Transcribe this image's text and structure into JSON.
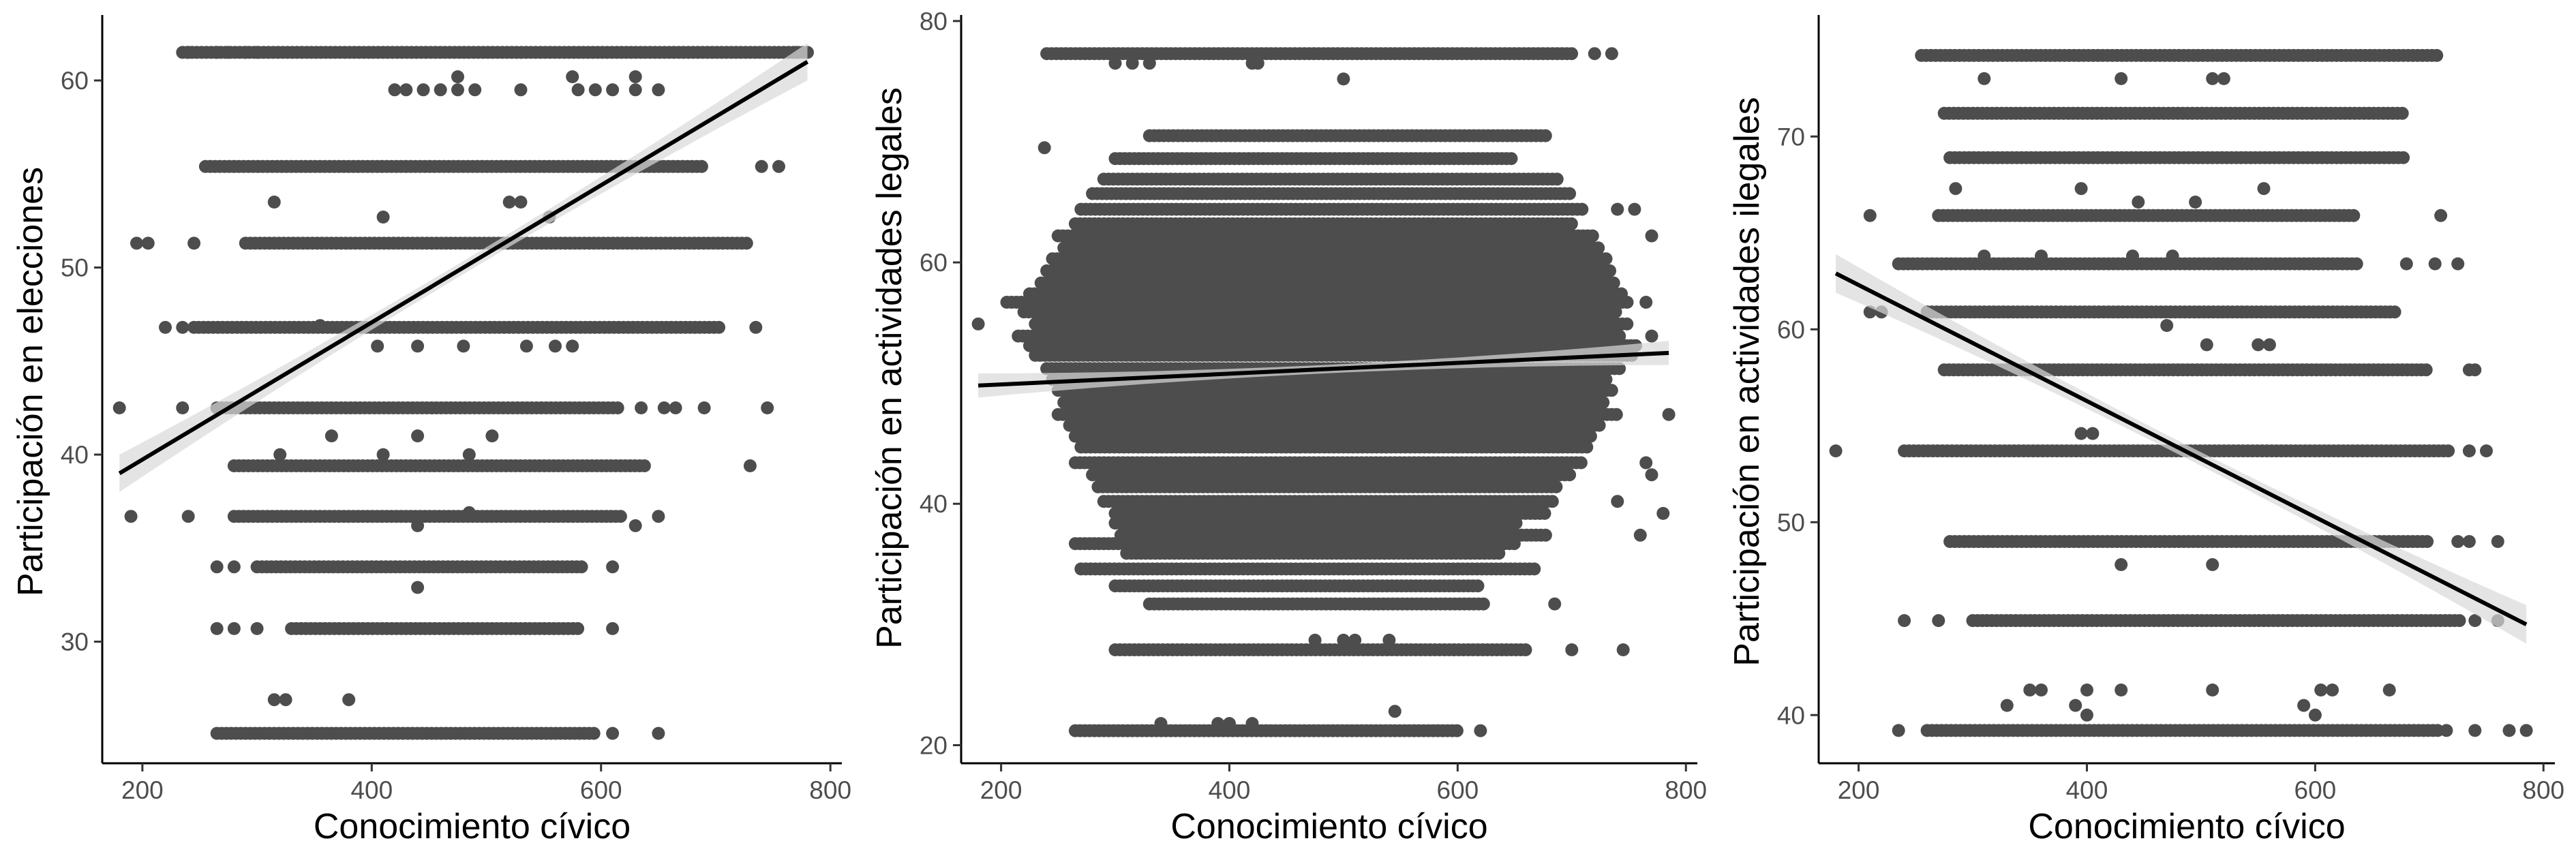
{
  "chart_data": [
    {
      "type": "scatter",
      "xlabel": "Conocimiento cívico",
      "ylabel": "Participación en elecciones",
      "xlim": [
        165,
        810
      ],
      "ylim": [
        23.5,
        63.5
      ],
      "xticks": [
        200,
        400,
        600,
        800
      ],
      "yticks": [
        30,
        40,
        50,
        60
      ],
      "grid": false,
      "point_color": "#4d4d4d",
      "line_color": "#000000",
      "band_color": "#d9d9d9",
      "trend": {
        "x": [
          180,
          780
        ],
        "y": [
          39.0,
          61.0
        ]
      },
      "band_halfwidth": {
        "ends": 1.0,
        "middle": 0.35
      },
      "rows": [
        {
          "y": 61.5,
          "x": [
            235,
            780
          ],
          "extra": [
            240,
            265,
            275,
            290,
            300,
            770,
            780
          ]
        },
        {
          "y": 59.5,
          "x": [],
          "extra": [
            420,
            430,
            445,
            460,
            475,
            490,
            530,
            580,
            595,
            610,
            630,
            650
          ]
        },
        {
          "y": 60.2,
          "x": [],
          "extra": [
            475,
            575,
            630
          ]
        },
        {
          "y": 55.4,
          "x": [
            255,
            690
          ],
          "extra": [
            740,
            755
          ]
        },
        {
          "y": 53.5,
          "x": [],
          "extra": [
            315,
            520,
            530
          ]
        },
        {
          "y": 52.7,
          "x": [],
          "extra": [
            410,
            555
          ]
        },
        {
          "y": 51.3,
          "x": [
            290,
            730
          ],
          "extra": [
            195,
            205,
            245
          ]
        },
        {
          "y": 46.8,
          "x": [
            245,
            705
          ],
          "extra": [
            220,
            235,
            735
          ]
        },
        {
          "y": 46.9,
          "x": [],
          "extra": [
            355
          ]
        },
        {
          "y": 45.8,
          "x": [],
          "extra": [
            405,
            440,
            480,
            535,
            560,
            575
          ]
        },
        {
          "y": 42.5,
          "x": [
            265,
            615
          ],
          "extra": [
            180,
            235,
            635,
            655,
            665,
            690,
            745
          ]
        },
        {
          "y": 41.0,
          "x": [],
          "extra": [
            365,
            440,
            505
          ]
        },
        {
          "y": 40.0,
          "x": [],
          "extra": [
            320,
            410,
            485
          ]
        },
        {
          "y": 39.4,
          "x": [
            280,
            640
          ],
          "extra": [
            730
          ]
        },
        {
          "y": 36.7,
          "x": [
            280,
            620
          ],
          "extra": [
            190,
            240,
            650
          ]
        },
        {
          "y": 36.2,
          "x": [],
          "extra": [
            440,
            630
          ]
        },
        {
          "y": 36.9,
          "x": [],
          "extra": [
            485
          ]
        },
        {
          "y": 34.0,
          "x": [
            300,
            585
          ],
          "extra": [
            265,
            280,
            610
          ]
        },
        {
          "y": 32.9,
          "x": [],
          "extra": [
            440
          ]
        },
        {
          "y": 30.7,
          "x": [
            330,
            580
          ],
          "extra": [
            265,
            280,
            300,
            610
          ]
        },
        {
          "y": 26.9,
          "x": [],
          "extra": [
            315,
            325,
            380
          ]
        },
        {
          "y": 25.1,
          "x": [
            265,
            595
          ],
          "extra": [
            610,
            650
          ]
        }
      ]
    },
    {
      "type": "scatter",
      "xlabel": "Conocimiento cívico",
      "ylabel": "Participación en actividades legales",
      "xlim": [
        165,
        810
      ],
      "ylim": [
        18.5,
        80.5
      ],
      "xticks": [
        200,
        400,
        600,
        800
      ],
      "yticks": [
        20,
        40,
        60,
        80
      ],
      "grid": false,
      "point_color": "#4d4d4d",
      "line_color": "#000000",
      "band_color": "#d9d9d9",
      "trend": {
        "x": [
          180,
          785
        ],
        "y": [
          49.8,
          52.5
        ]
      },
      "band_halfwidth": {
        "ends": 1.0,
        "middle": 0.35
      },
      "rows": [
        {
          "y": 77.3,
          "x": [
            240,
            700
          ],
          "extra": [
            720,
            735
          ]
        },
        {
          "y": 76.5,
          "x": [],
          "extra": [
            300,
            315,
            330,
            420,
            425
          ]
        },
        {
          "y": 75.2,
          "x": [],
          "extra": [
            500
          ]
        },
        {
          "y": 70.5,
          "x": [
            330,
            680
          ]
        },
        {
          "y": 69.5,
          "x": [],
          "extra": [
            238
          ]
        },
        {
          "y": 68.6,
          "x": [
            300,
            650
          ]
        },
        {
          "y": 66.9,
          "x": [
            290,
            690
          ]
        },
        {
          "y": 65.7,
          "x": [
            280,
            700
          ]
        },
        {
          "y": 64.4,
          "x": [
            270,
            710
          ],
          "extra": [
            740,
            755
          ]
        },
        {
          "y": 63.2,
          "x": [
            265,
            700
          ]
        },
        {
          "y": 62.2,
          "x": [
            250,
            720
          ],
          "extra": [
            770
          ]
        },
        {
          "y": 61.2,
          "x": [
            255,
            725
          ]
        },
        {
          "y": 60.3,
          "x": [
            245,
            730
          ]
        },
        {
          "y": 59.3,
          "x": [
            240,
            735
          ]
        },
        {
          "y": 58.3,
          "x": [
            235,
            740
          ]
        },
        {
          "y": 57.4,
          "x": [
            225,
            745
          ]
        },
        {
          "y": 56.7,
          "x": [
            205,
            750
          ],
          "extra": [
            765
          ]
        },
        {
          "y": 55.9,
          "x": [
            220,
            740
          ]
        },
        {
          "y": 54.9,
          "x": [
            230,
            750
          ],
          "extra": [
            180
          ]
        },
        {
          "y": 53.9,
          "x": [
            215,
            745
          ],
          "extra": [
            770
          ]
        },
        {
          "y": 53.1,
          "x": [
            225,
            760
          ]
        },
        {
          "y": 52.3,
          "x": [
            230,
            755
          ]
        },
        {
          "y": 51.2,
          "x": [
            240,
            745
          ]
        },
        {
          "y": 50.3,
          "x": [
            245,
            730
          ]
        },
        {
          "y": 49.4,
          "x": [
            250,
            735
          ]
        },
        {
          "y": 48.4,
          "x": [
            255,
            730
          ]
        },
        {
          "y": 47.4,
          "x": [
            250,
            740
          ],
          "extra": [
            785
          ]
        },
        {
          "y": 46.5,
          "x": [
            260,
            725
          ]
        },
        {
          "y": 45.6,
          "x": [
            265,
            720
          ]
        },
        {
          "y": 44.7,
          "x": [
            270,
            715
          ]
        },
        {
          "y": 43.4,
          "x": [
            265,
            710
          ],
          "extra": [
            765
          ]
        },
        {
          "y": 42.4,
          "x": [
            280,
            700
          ],
          "extra": [
            770
          ]
        },
        {
          "y": 41.4,
          "x": [
            285,
            690
          ]
        },
        {
          "y": 40.2,
          "x": [
            290,
            685
          ],
          "extra": [
            740
          ]
        },
        {
          "y": 39.2,
          "x": [
            300,
            680
          ],
          "extra": [
            780
          ]
        },
        {
          "y": 38.4,
          "x": [
            300,
            655
          ]
        },
        {
          "y": 37.4,
          "x": [
            305,
            680
          ],
          "extra": [
            760
          ]
        },
        {
          "y": 36.7,
          "x": [
            265,
            650
          ]
        },
        {
          "y": 35.9,
          "x": [
            310,
            640
          ]
        },
        {
          "y": 34.6,
          "x": [
            270,
            670
          ]
        },
        {
          "y": 33.2,
          "x": [
            300,
            620
          ]
        },
        {
          "y": 31.7,
          "x": [
            330,
            625
          ],
          "extra": [
            685
          ]
        },
        {
          "y": 28.7,
          "x": [],
          "extra": [
            475,
            500,
            510,
            540
          ]
        },
        {
          "y": 27.9,
          "x": [
            300,
            660
          ],
          "extra": [
            700,
            745
          ]
        },
        {
          "y": 22.8,
          "x": [],
          "extra": [
            545
          ]
        },
        {
          "y": 21.8,
          "x": [],
          "extra": [
            340,
            390,
            400,
            420
          ]
        },
        {
          "y": 21.2,
          "x": [
            265,
            600
          ],
          "extra": [
            620
          ]
        }
      ]
    },
    {
      "type": "scatter",
      "xlabel": "Conocimiento cívico",
      "ylabel": "Participación en actividades ilegales",
      "xlim": [
        165,
        810
      ],
      "ylim": [
        37.5,
        76.3
      ],
      "xticks": [
        200,
        400,
        600,
        800
      ],
      "yticks": [
        40,
        50,
        60,
        70
      ],
      "grid": false,
      "point_color": "#4d4d4d",
      "line_color": "#000000",
      "band_color": "#d9d9d9",
      "trend": {
        "x": [
          180,
          785
        ],
        "y": [
          62.9,
          44.7
        ]
      },
      "band_halfwidth": {
        "ends": 1.0,
        "middle": 0.35
      },
      "rows": [
        {
          "y": 74.2,
          "x": [
            255,
            710
          ]
        },
        {
          "y": 73.0,
          "x": [],
          "extra": [
            310,
            430,
            510,
            520
          ]
        },
        {
          "y": 71.2,
          "x": [
            275,
            680
          ]
        },
        {
          "y": 68.9,
          "x": [
            280,
            680
          ]
        },
        {
          "y": 67.3,
          "x": [],
          "extra": [
            285,
            395,
            555
          ]
        },
        {
          "y": 66.6,
          "x": [],
          "extra": [
            445,
            495
          ]
        },
        {
          "y": 65.9,
          "x": [
            270,
            635
          ],
          "extra": [
            210,
            710
          ]
        },
        {
          "y": 63.8,
          "x": [],
          "extra": [
            310,
            360,
            440,
            475
          ]
        },
        {
          "y": 63.4,
          "x": [
            235,
            640
          ],
          "extra": [
            680,
            705,
            725
          ]
        },
        {
          "y": 60.9,
          "x": [
            260,
            670
          ],
          "extra": [
            210,
            220
          ]
        },
        {
          "y": 60.2,
          "x": [],
          "extra": [
            470
          ]
        },
        {
          "y": 59.2,
          "x": [],
          "extra": [
            505,
            550,
            560
          ]
        },
        {
          "y": 57.9,
          "x": [
            275,
            700
          ],
          "extra": [
            735,
            740
          ]
        },
        {
          "y": 54.6,
          "x": [],
          "extra": [
            395,
            405
          ]
        },
        {
          "y": 53.7,
          "x": [
            240,
            720
          ],
          "extra": [
            180,
            735,
            750
          ]
        },
        {
          "y": 49.0,
          "x": [
            280,
            700
          ],
          "extra": [
            725,
            735,
            760
          ]
        },
        {
          "y": 47.8,
          "x": [],
          "extra": [
            430,
            510
          ]
        },
        {
          "y": 44.9,
          "x": [
            300,
            730
          ],
          "extra": [
            240,
            270,
            740,
            760
          ]
        },
        {
          "y": 41.3,
          "x": [],
          "extra": [
            350,
            360,
            400,
            430,
            510,
            605,
            615,
            665
          ]
        },
        {
          "y": 40.5,
          "x": [],
          "extra": [
            330,
            390,
            590
          ]
        },
        {
          "y": 40.0,
          "x": [],
          "extra": [
            400,
            600
          ]
        },
        {
          "y": 39.2,
          "x": [
            260,
            710
          ],
          "extra": [
            235,
            715,
            740,
            770,
            785
          ]
        }
      ]
    }
  ]
}
